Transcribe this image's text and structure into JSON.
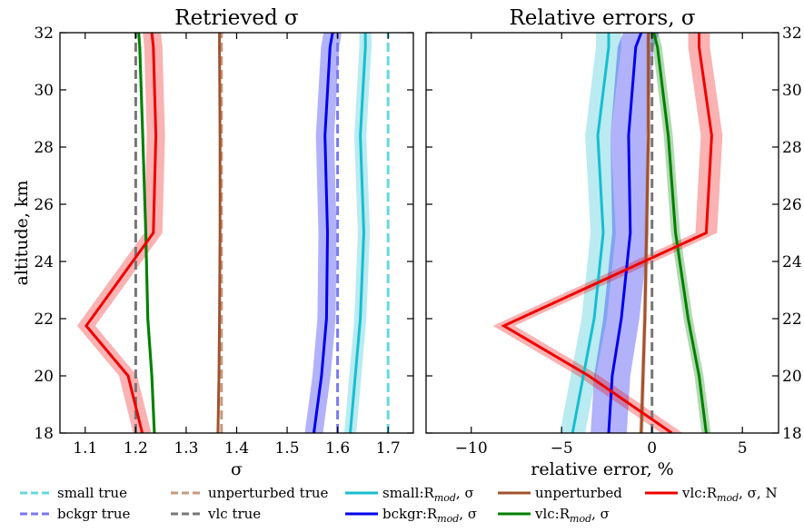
{
  "chart_data": [
    {
      "type": "line",
      "title": "Retrieved σ",
      "xlabel": "σ",
      "ylabel": "altitude, km",
      "xlim": [
        1.05,
        1.75
      ],
      "ylim": [
        18,
        32
      ],
      "xticks": [
        1.1,
        1.2,
        1.3,
        1.4,
        1.5,
        1.6,
        1.7
      ],
      "xtick_labels": [
        "1.1",
        "1.2",
        "1.3",
        "1.4",
        "1.5",
        "1.6",
        "1.7"
      ],
      "yticks": [
        18,
        20,
        22,
        24,
        26,
        28,
        30,
        32
      ],
      "ytick_labels": [
        "18",
        "20",
        "22",
        "24",
        "26",
        "28",
        "30",
        "32"
      ],
      "grid": false,
      "series": [
        {
          "name": "small true",
          "style": "dashed",
          "color": "#66d8dc",
          "points": [
            [
              1.7,
              18
            ],
            [
              1.7,
              32
            ]
          ]
        },
        {
          "name": "bckgr true",
          "style": "dashed",
          "color": "#7a7af0",
          "points": [
            [
              1.6,
              18
            ],
            [
              1.6,
              32
            ]
          ]
        },
        {
          "name": "unperturbed true",
          "style": "dashed",
          "color": "#c49a80",
          "points": [
            [
              1.37,
              18
            ],
            [
              1.37,
              32
            ]
          ]
        },
        {
          "name": "vlc true",
          "style": "dashed",
          "color": "#777777",
          "points": [
            [
              1.2,
              18
            ],
            [
              1.2,
              32
            ]
          ]
        },
        {
          "name": "small:R_mod, σ",
          "style": "solid",
          "color": "#17becf",
          "band": 0.012,
          "points": [
            [
              1.625,
              18
            ],
            [
              1.635,
              20
            ],
            [
              1.645,
              22
            ],
            [
              1.652,
              25
            ],
            [
              1.645,
              28.4
            ],
            [
              1.655,
              31.5
            ],
            [
              1.655,
              32
            ]
          ]
        },
        {
          "name": "bckgr:R_mod, σ",
          "style": "solid",
          "color": "#0000ee",
          "band": 0.018,
          "points": [
            [
              1.553,
              18
            ],
            [
              1.568,
              20
            ],
            [
              1.578,
              22
            ],
            [
              1.58,
              25
            ],
            [
              1.575,
              28.4
            ],
            [
              1.585,
              31.5
            ],
            [
              1.59,
              32
            ]
          ]
        },
        {
          "name": "unperturbed",
          "style": "solid",
          "color": "#a0522d",
          "band": 0.002,
          "points": [
            [
              1.363,
              18
            ],
            [
              1.365,
              20
            ],
            [
              1.366,
              22
            ],
            [
              1.367,
              25
            ],
            [
              1.367,
              28.4
            ],
            [
              1.366,
              31.5
            ],
            [
              1.366,
              32
            ]
          ]
        },
        {
          "name": "vlc:R_mod, σ",
          "style": "solid",
          "color": "#008000",
          "band": 0.003,
          "points": [
            [
              1.237,
              18
            ],
            [
              1.232,
              20
            ],
            [
              1.224,
              22
            ],
            [
              1.22,
              25
            ],
            [
              1.214,
              28.4
            ],
            [
              1.208,
              31.5
            ],
            [
              1.206,
              32
            ]
          ]
        },
        {
          "name": "vlc:R_mod, σ, N",
          "style": "solid",
          "color": "#ee0000",
          "band": 0.018,
          "points": [
            [
              1.213,
              18
            ],
            [
              1.185,
              20
            ],
            [
              1.102,
              21.75
            ],
            [
              1.235,
              25
            ],
            [
              1.24,
              28.4
            ],
            [
              1.235,
              31.5
            ],
            [
              1.232,
              32
            ]
          ]
        }
      ]
    },
    {
      "type": "line",
      "title": "Relative errors, σ",
      "xlabel": "relative error, %",
      "ylabel": "",
      "xlim": [
        -12.5,
        7.0
      ],
      "ylim": [
        18,
        32
      ],
      "xticks": [
        -10,
        -5,
        0,
        5
      ],
      "xtick_labels": [
        "−10",
        "−5",
        "0",
        "5"
      ],
      "yticks": [
        18,
        20,
        22,
        24,
        26,
        28,
        30,
        32
      ],
      "ytick_labels": [
        "18",
        "20",
        "22",
        "24",
        "26",
        "28",
        "30",
        "32"
      ],
      "grid": false,
      "series": [
        {
          "name": "zero line",
          "style": "dashed",
          "color": "#777777",
          "points": [
            [
              0,
              18
            ],
            [
              0,
              32
            ]
          ]
        },
        {
          "name": "small:R_mod, σ",
          "style": "solid",
          "color": "#17becf",
          "band": 0.7,
          "points": [
            [
              -4.4,
              18
            ],
            [
              -3.8,
              20
            ],
            [
              -3.2,
              22
            ],
            [
              -2.7,
              25
            ],
            [
              -3.0,
              28.4
            ],
            [
              -2.4,
              31.5
            ],
            [
              -2.4,
              32
            ]
          ]
        },
        {
          "name": "bckgr:R_mod, σ",
          "style": "solid",
          "color": "#0000ee",
          "band": 1.0,
          "points": [
            [
              -2.4,
              18
            ],
            [
              -2.2,
              20
            ],
            [
              -1.7,
              22
            ],
            [
              -1.2,
              25
            ],
            [
              -1.3,
              28.4
            ],
            [
              -0.9,
              31.5
            ],
            [
              -0.6,
              32
            ]
          ]
        },
        {
          "name": "unperturbed",
          "style": "solid",
          "color": "#a0522d",
          "band": 0.12,
          "points": [
            [
              -0.6,
              18
            ],
            [
              -0.5,
              20
            ],
            [
              -0.4,
              22
            ],
            [
              -0.3,
              25
            ],
            [
              -0.2,
              28.4
            ],
            [
              -0.2,
              31.5
            ],
            [
              -0.2,
              32
            ]
          ]
        },
        {
          "name": "vlc:R_mod, σ",
          "style": "solid",
          "color": "#008000",
          "band": 0.25,
          "points": [
            [
              3.0,
              18
            ],
            [
              2.6,
              20
            ],
            [
              2.0,
              22
            ],
            [
              1.3,
              25
            ],
            [
              0.9,
              28.4
            ],
            [
              0.3,
              31.5
            ],
            [
              0.1,
              32
            ]
          ]
        },
        {
          "name": "vlc:R_mod, σ, N",
          "style": "solid",
          "color": "#ee0000",
          "band": 0.6,
          "points": [
            [
              1.1,
              18
            ],
            [
              -3.5,
              20
            ],
            [
              -8.2,
              21.75
            ],
            [
              3.0,
              25
            ],
            [
              3.3,
              28.4
            ],
            [
              2.6,
              31.5
            ],
            [
              2.6,
              32
            ]
          ]
        }
      ]
    }
  ],
  "legend": [
    {
      "label": "small true",
      "style": "dashed",
      "color": "#66d8dc"
    },
    {
      "label": "bckgr true",
      "style": "dashed",
      "color": "#7a7af0"
    },
    {
      "label": "unperturbed true",
      "style": "dashed",
      "color": "#c49a80"
    },
    {
      "label": "vlc true",
      "style": "dashed",
      "color": "#777777"
    },
    {
      "label": "small:R",
      "sub": "mod",
      "tail": ", σ",
      "style": "solid",
      "color": "#17becf"
    },
    {
      "label": "bckgr:R",
      "sub": "mod",
      "tail": ", σ",
      "style": "solid",
      "color": "#0000ee"
    },
    {
      "label": "unperturbed",
      "style": "solid",
      "color": "#a0522d"
    },
    {
      "label": "vlc:R",
      "sub": "mod",
      "tail": ", σ",
      "style": "solid",
      "color": "#008000"
    },
    {
      "label": "vlc:R",
      "sub": "mod",
      "tail": ", σ, N",
      "style": "solid",
      "color": "#ee0000"
    }
  ]
}
